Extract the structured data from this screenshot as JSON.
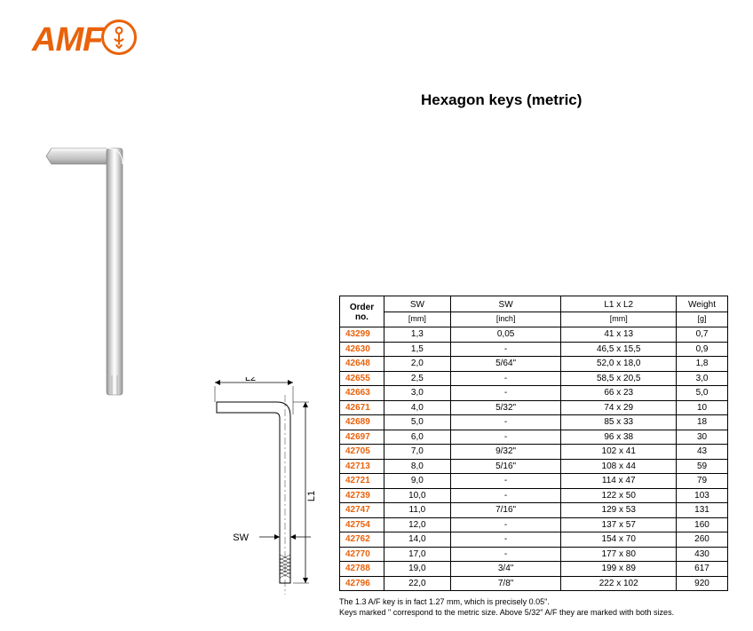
{
  "logo": {
    "text": "AMF"
  },
  "title": "Hexagon keys (metric)",
  "diagram": {
    "labels": {
      "l2": "L2",
      "l1": "L1",
      "sw": "SW"
    },
    "stroke_color": "#000000",
    "key_fill": "#e8e8e8"
  },
  "product_image": {
    "fill": "#f0f0f0",
    "stroke": "#888888"
  },
  "table": {
    "headers": {
      "order": "Order no.",
      "sw_mm": {
        "label": "SW",
        "unit": "[mm]"
      },
      "sw_in": {
        "label": "SW",
        "unit": "[inch]"
      },
      "l1l2": {
        "label": "L1 x L2",
        "unit": "[mm]"
      },
      "weight": {
        "label": "Weight",
        "unit": "[g]"
      }
    },
    "rows": [
      {
        "order": "43299",
        "sw_mm": "1,3",
        "sw_in": "0,05",
        "l1l2": "41 x 13",
        "weight": "0,7"
      },
      {
        "order": "42630",
        "sw_mm": "1,5",
        "sw_in": "-",
        "l1l2": "46,5 x 15,5",
        "weight": "0,9"
      },
      {
        "order": "42648",
        "sw_mm": "2,0",
        "sw_in": "5/64\"",
        "l1l2": "52,0 x 18,0",
        "weight": "1,8"
      },
      {
        "order": "42655",
        "sw_mm": "2,5",
        "sw_in": "-",
        "l1l2": "58,5 x 20,5",
        "weight": "3,0"
      },
      {
        "order": "42663",
        "sw_mm": "3,0",
        "sw_in": "-",
        "l1l2": "66 x 23",
        "weight": "5,0"
      },
      {
        "order": "42671",
        "sw_mm": "4,0",
        "sw_in": "5/32\"",
        "l1l2": "74 x 29",
        "weight": "10"
      },
      {
        "order": "42689",
        "sw_mm": "5,0",
        "sw_in": "-",
        "l1l2": "85 x 33",
        "weight": "18"
      },
      {
        "order": "42697",
        "sw_mm": "6,0",
        "sw_in": "-",
        "l1l2": "96 x 38",
        "weight": "30"
      },
      {
        "order": "42705",
        "sw_mm": "7,0",
        "sw_in": "9/32\"",
        "l1l2": "102 x 41",
        "weight": "43"
      },
      {
        "order": "42713",
        "sw_mm": "8,0",
        "sw_in": "5/16\"",
        "l1l2": "108 x 44",
        "weight": "59"
      },
      {
        "order": "42721",
        "sw_mm": "9,0",
        "sw_in": "-",
        "l1l2": "114 x 47",
        "weight": "79"
      },
      {
        "order": "42739",
        "sw_mm": "10,0",
        "sw_in": "-",
        "l1l2": "122 x 50",
        "weight": "103"
      },
      {
        "order": "42747",
        "sw_mm": "11,0",
        "sw_in": "7/16\"",
        "l1l2": "129 x 53",
        "weight": "131"
      },
      {
        "order": "42754",
        "sw_mm": "12,0",
        "sw_in": "-",
        "l1l2": "137 x 57",
        "weight": "160"
      },
      {
        "order": "42762",
        "sw_mm": "14,0",
        "sw_in": "-",
        "l1l2": "154 x 70",
        "weight": "260"
      },
      {
        "order": "42770",
        "sw_mm": "17,0",
        "sw_in": "-",
        "l1l2": "177 x 80",
        "weight": "430"
      },
      {
        "order": "42788",
        "sw_mm": "19,0",
        "sw_in": "3/4\"",
        "l1l2": "199 x 89",
        "weight": "617"
      },
      {
        "order": "42796",
        "sw_mm": "22,0",
        "sw_in": "7/8\"",
        "l1l2": "222 x 102",
        "weight": "920"
      }
    ]
  },
  "footnotes": {
    "line1": "The 1.3 A/F key is in fact 1.27 mm, which is precisely 0.05\".",
    "line2": "Keys marked \" correspond to the metric size. Above 5/32\" A/F they are marked with both sizes."
  },
  "colors": {
    "brand": "#e9620a",
    "text": "#000000",
    "border": "#000000"
  }
}
